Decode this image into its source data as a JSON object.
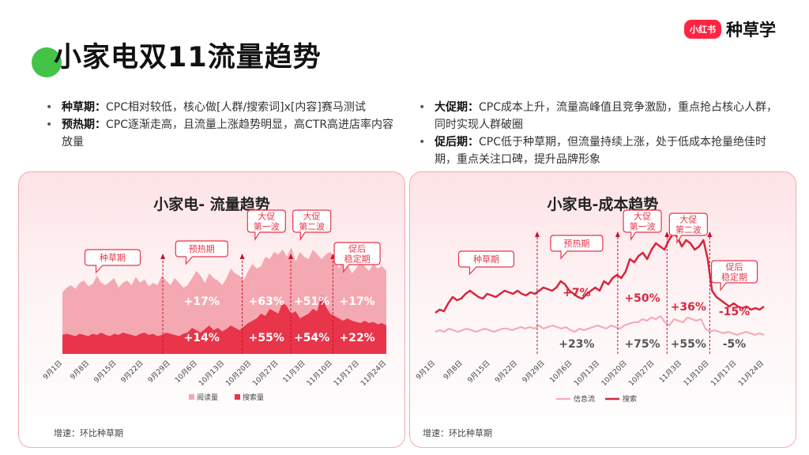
{
  "header": {
    "title": "小家电双11流量趋势",
    "logo_badge": "小红书",
    "logo_text": "种草学"
  },
  "bullets_left": [
    {
      "term": "种草期：",
      "text": "CPC相对较低，核心做[人群/搜索词]x[内容]赛马测试"
    },
    {
      "term": "预热期：",
      "text": "CPC逐渐走高，且流量上涨趋势明显，高CTR高进店率内容放量"
    }
  ],
  "bullets_right": [
    {
      "term": "大促期：",
      "text": "CPC成本上升，流量高峰值且竞争激励，重点抢占核心人群，同时实现人群破圈"
    },
    {
      "term": "促后期：",
      "text": "CPC低于种草期，但流量持续上涨，处于低成本抢量绝佳时期，重点关注口碑，提升品牌形象"
    }
  ],
  "colors": {
    "accent": "#e8354a",
    "light": "#f4a9b2",
    "green": "#43c447"
  },
  "chart_data": [
    {
      "type": "area",
      "title": "小家电- 流量趋势",
      "x_ticks": [
        "9月1日",
        "9月8日",
        "9月15日",
        "9月22日",
        "9月29日",
        "10月6日",
        "10月13日",
        "10月20日",
        "10月27日",
        "11月3日",
        "11月10日",
        "11月17日",
        "11月24日"
      ],
      "series": [
        {
          "name": "阅读量",
          "values": [
            52,
            56,
            58,
            55,
            60,
            62,
            57,
            59,
            66,
            60,
            58,
            61,
            64,
            56,
            60,
            62,
            58,
            65,
            60,
            63,
            57,
            60,
            58,
            66,
            62,
            58,
            64,
            60,
            56,
            58,
            64,
            70,
            66,
            60,
            68,
            64,
            62,
            58,
            64,
            72,
            68,
            66,
            62,
            70,
            76,
            72,
            74,
            82,
            80,
            86,
            84,
            88,
            82,
            90,
            78,
            86,
            82,
            80,
            88,
            84,
            80,
            84,
            86,
            82,
            72,
            80,
            76,
            68,
            72,
            78,
            74,
            70,
            76,
            72,
            74,
            70
          ]
        },
        {
          "name": "搜索量",
          "values": [
            16,
            17,
            16,
            15,
            17,
            16,
            15,
            17,
            16,
            18,
            16,
            15,
            17,
            16,
            18,
            17,
            16,
            15,
            17,
            18,
            16,
            17,
            15,
            16,
            18,
            17,
            16,
            15,
            17,
            18,
            22,
            20,
            18,
            21,
            24,
            20,
            22,
            19,
            21,
            24,
            22,
            20,
            23,
            26,
            28,
            30,
            34,
            32,
            38,
            36,
            34,
            44,
            40,
            34,
            36,
            30,
            32,
            34,
            38,
            36,
            50,
            40,
            34,
            32,
            30,
            28,
            30,
            28,
            27,
            26,
            28,
            26,
            27,
            25,
            26,
            24
          ]
        }
      ],
      "phases": [
        {
          "label": "种草期",
          "pct_top": "",
          "pct_bottom": ""
        },
        {
          "label": "预热期",
          "pct_top": "+17%",
          "pct_bottom": "+14%"
        },
        {
          "label": "大促\n第一波",
          "pct_top": "+63%",
          "pct_bottom": "+55%"
        },
        {
          "label": "大促\n第二波",
          "pct_top": "+51%",
          "pct_bottom": "+54%"
        },
        {
          "label": "促后\n稳定期",
          "pct_top": "+17%",
          "pct_bottom": "+22%"
        }
      ],
      "note": "增速：环比种草期"
    },
    {
      "type": "line",
      "title": "小家电-成本趋势",
      "x_ticks": [
        "9月1日",
        "9月8日",
        "9月15日",
        "9月22日",
        "9月29日",
        "10月6日",
        "10月13日",
        "10月20日",
        "10月27日",
        "11月3日",
        "11月10日",
        "11月17日",
        "11月24日"
      ],
      "series": [
        {
          "name": "信息流",
          "values": [
            34,
            35,
            34,
            36,
            35,
            34,
            35,
            36,
            35,
            34,
            35,
            36,
            35,
            34,
            35,
            36,
            36,
            35,
            36,
            37,
            36,
            37,
            36,
            38,
            36,
            37,
            38,
            37,
            36,
            37,
            35,
            34,
            36,
            35,
            36,
            37,
            38,
            37,
            36,
            38,
            37,
            36,
            38,
            39,
            40,
            40,
            42,
            41,
            43,
            42,
            44,
            40,
            38,
            42,
            41,
            40,
            43,
            42,
            41,
            42,
            36,
            34,
            35,
            34,
            33,
            34,
            33,
            32,
            33,
            34,
            33,
            32,
            33,
            32
          ]
        },
        {
          "name": "搜索",
          "values": [
            46,
            48,
            47,
            52,
            56,
            54,
            55,
            58,
            60,
            58,
            56,
            55,
            58,
            57,
            56,
            58,
            60,
            59,
            58,
            60,
            58,
            57,
            59,
            58,
            60,
            62,
            61,
            60,
            62,
            66,
            64,
            60,
            58,
            56,
            55,
            58,
            60,
            62,
            60,
            66,
            64,
            68,
            70,
            68,
            72,
            80,
            78,
            82,
            84,
            80,
            86,
            90,
            88,
            86,
            92,
            96,
            94,
            88,
            92,
            90,
            86,
            88,
            92,
            80,
            60,
            56,
            54,
            52,
            50,
            52,
            50,
            49,
            50,
            48,
            49,
            48,
            50
          ]
        }
      ],
      "phases": [
        {
          "label": "种草期",
          "pct_top": "",
          "pct_bottom": ""
        },
        {
          "label": "预热期",
          "pct_top": "+7%",
          "pct_bottom": "+23%"
        },
        {
          "label": "大促\n第一波",
          "pct_top": "+50%",
          "pct_bottom": "+75%"
        },
        {
          "label": "大促\n第二波",
          "pct_top": "+36%",
          "pct_bottom": "+55%"
        },
        {
          "label": "促后\n稳定期",
          "pct_top": "-15%",
          "pct_bottom": "-5%"
        }
      ],
      "note": "增速：环比种草期"
    }
  ]
}
